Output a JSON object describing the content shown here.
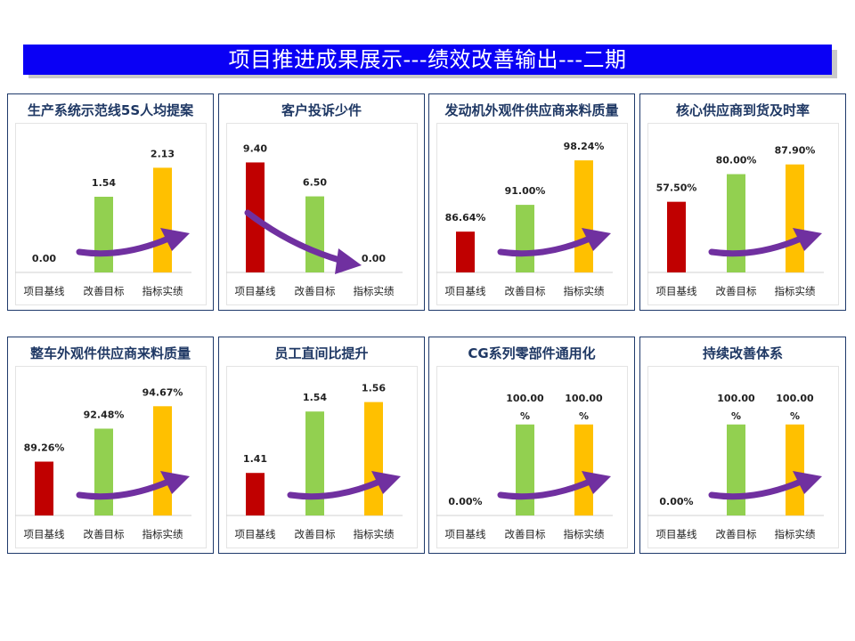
{
  "page": {
    "title": "项目推进成果展示---绩效改善输出---二期"
  },
  "colors": {
    "banner": "#0a00f5",
    "baseline_bar": "#c00000",
    "target_bar": "#92d050",
    "actual_bar": "#ffc000",
    "arrow": "#7030a0",
    "panel_border": "#1f3a6b",
    "title_text": "#1f3864"
  },
  "chart_data": [
    {
      "type": "bar",
      "title": "生产系统示范线5S人均提案",
      "categories": [
        "项目基线",
        "改善目标",
        "指标实绩"
      ],
      "values": [
        0,
        1.54,
        2.13
      ],
      "value_labels": [
        "0.00",
        "1.54",
        "2.13"
      ],
      "ylim": [
        0,
        2.5
      ],
      "arrow": "up"
    },
    {
      "type": "bar",
      "title": "客户投诉少件",
      "categories": [
        "项目基线",
        "改善目标",
        "指标实绩"
      ],
      "values": [
        9.4,
        6.5,
        0
      ],
      "value_labels": [
        "9.40",
        "6.50",
        "0.00"
      ],
      "ylim": [
        0,
        10.5
      ],
      "arrow": "down"
    },
    {
      "type": "bar",
      "title": "发动机外观件供应商来料质量",
      "categories": [
        "项目基线",
        "改善目标",
        "指标实绩"
      ],
      "values": [
        86.64,
        91.0,
        98.24
      ],
      "value_labels": [
        "86.64%",
        "91.00%",
        "98.24%"
      ],
      "ylim": [
        80,
        100
      ],
      "arrow": "up"
    },
    {
      "type": "bar",
      "title": "核心供应商到货及时率",
      "categories": [
        "项目基线",
        "改善目标",
        "指标实绩"
      ],
      "values": [
        57.5,
        80.0,
        87.9
      ],
      "value_labels": [
        "57.50%",
        "80.00%",
        "87.90%"
      ],
      "ylim": [
        0,
        100
      ],
      "arrow": "up"
    },
    {
      "type": "bar",
      "title": "整车外观件供应商来料质量",
      "categories": [
        "项目基线",
        "改善目标",
        "指标实绩"
      ],
      "values": [
        89.26,
        92.48,
        94.67
      ],
      "value_labels": [
        "89.26%",
        "92.48%",
        "94.67%"
      ],
      "ylim": [
        84,
        96
      ],
      "arrow": "up"
    },
    {
      "type": "bar",
      "title": "员工直间比提升",
      "categories": [
        "项目基线",
        "改善目标",
        "指标实绩"
      ],
      "values": [
        1.41,
        1.54,
        1.56
      ],
      "value_labels": [
        "1.41",
        "1.54",
        "1.56"
      ],
      "ylim": [
        1.32,
        1.58
      ],
      "arrow": "up"
    },
    {
      "type": "bar",
      "title": "CG系列零部件通用化",
      "categories": [
        "项目基线",
        "改善目标",
        "指标实绩"
      ],
      "values": [
        0,
        100,
        100
      ],
      "value_labels": [
        "0.00%",
        "100.00%",
        "100.00%"
      ],
      "ylim": [
        0,
        135
      ],
      "arrow": "up"
    },
    {
      "type": "bar",
      "title": "持续改善体系",
      "categories": [
        "项目基线",
        "改善目标",
        "指标实绩"
      ],
      "values": [
        0,
        100,
        100
      ],
      "value_labels": [
        "0.00%",
        "100.00%",
        "100.00%"
      ],
      "ylim": [
        0,
        135
      ],
      "arrow": "up"
    }
  ]
}
